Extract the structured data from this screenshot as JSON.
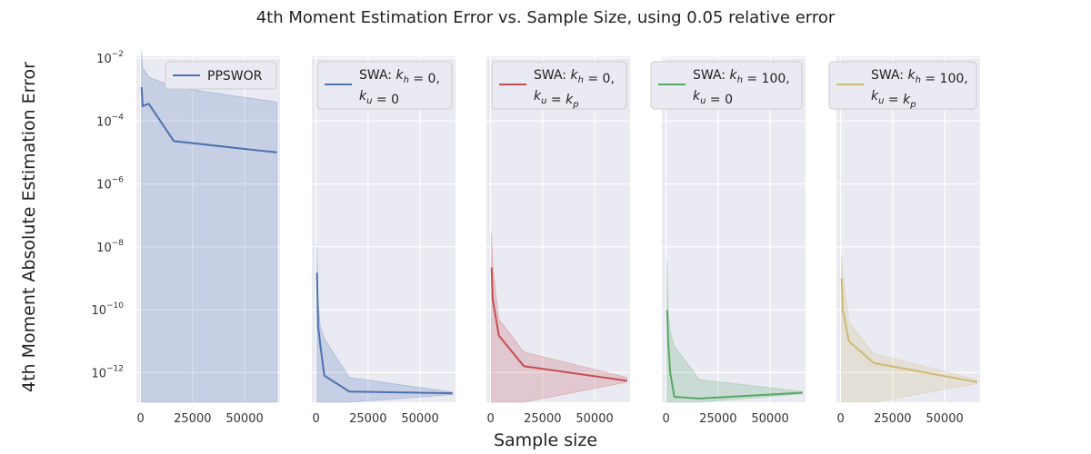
{
  "figure": {
    "title": "4th Moment Estimation Error vs. Sample Size, using 0.05 relative error",
    "xlabel": "Sample size",
    "ylabel": "4th Moment Absolute Estimation Error"
  },
  "chart_data": [
    {
      "type": "line",
      "legend": "PPSWOR",
      "color": "#4c72b0",
      "yscale": "log",
      "ylim": [
        1e-13,
        0.01
      ],
      "xlim": [
        -2000,
        67000
      ],
      "x_ticks": [
        "0",
        "25000",
        "50000"
      ],
      "y_ticks": [
        "10^-2",
        "10^-4",
        "10^-6",
        "10^-8",
        "10^-10",
        "10^-12"
      ],
      "x": [
        500,
        1000,
        4000,
        16000,
        65536
      ],
      "y": [
        0.0012,
        0.0003,
        0.00035,
        2.3e-05,
        1e-05
      ],
      "upper": [
        0.018,
        0.005,
        0.0025,
        0.0012,
        0.0004
      ],
      "lower": [
        1e-13,
        1e-13,
        1e-13,
        1e-13,
        1e-13
      ]
    },
    {
      "type": "line",
      "legend": {
        "l1": [
          "SWA: ",
          "k",
          "h",
          " = 0,"
        ],
        "l2": [
          "k",
          "u",
          " = 0"
        ]
      },
      "color": "#4c72b0",
      "yscale": "log",
      "ylim": [
        1e-13,
        0.01
      ],
      "xlim": [
        -2000,
        67000
      ],
      "x_ticks": [
        "0",
        "25000",
        "50000"
      ],
      "x": [
        500,
        1000,
        2000,
        4000,
        16000,
        65536
      ],
      "y": [
        1.5e-09,
        3e-11,
        8e-12,
        8e-13,
        2.5e-13,
        2.2e-13
      ],
      "upper": [
        1e-08,
        2e-10,
        3e-11,
        1.2e-11,
        7e-13,
        2.4e-13
      ],
      "lower": [
        1e-13,
        1e-13,
        1e-13,
        1e-13,
        1e-13,
        2e-13
      ]
    },
    {
      "type": "line",
      "legend": {
        "l1": [
          "SWA: ",
          "k",
          "h",
          " = 0,"
        ],
        "l2": [
          "k",
          "u",
          " = ",
          "k",
          "p"
        ]
      },
      "color": "#c44e52",
      "yscale": "log",
      "ylim": [
        1e-13,
        0.01
      ],
      "xlim": [
        -2000,
        67000
      ],
      "x_ticks": [
        "0",
        "25000",
        "50000"
      ],
      "x": [
        500,
        1000,
        4000,
        16000,
        65536
      ],
      "y": [
        2.2e-09,
        2.2e-10,
        1.5e-11,
        1.6e-12,
        5.5e-13
      ],
      "upper": [
        2.8e-08,
        2.5e-09,
        5e-11,
        4.5e-12,
        7e-13
      ],
      "lower": [
        1e-13,
        1e-13,
        1e-13,
        1e-13,
        5e-13
      ]
    },
    {
      "type": "line",
      "legend": {
        "l1": [
          "SWA: ",
          "k",
          "h",
          " = 100,"
        ],
        "l2": [
          "k",
          "u",
          " = 0"
        ]
      },
      "color": "#55a868",
      "yscale": "log",
      "ylim": [
        1e-13,
        0.01
      ],
      "xlim": [
        -2000,
        67000
      ],
      "x_ticks": [
        "0",
        "25000",
        "50000"
      ],
      "x": [
        500,
        1000,
        2000,
        4000,
        16000,
        65536
      ],
      "y": [
        1e-10,
        1e-11,
        1e-12,
        1.7e-13,
        1.5e-13,
        2.3e-13
      ],
      "upper": [
        3.5e-09,
        1e-10,
        2e-11,
        7e-12,
        6e-13,
        2.5e-13
      ],
      "lower": [
        1e-13,
        1e-13,
        1e-13,
        1e-13,
        1e-13,
        2.1e-13
      ]
    },
    {
      "type": "line",
      "legend": {
        "l1": [
          "SWA: ",
          "k",
          "h",
          " = 100,"
        ],
        "l2": [
          "k",
          "u",
          " = ",
          "k",
          "p"
        ]
      },
      "color": "#ccb974",
      "yscale": "log",
      "ylim": [
        1e-13,
        0.01
      ],
      "xlim": [
        -2000,
        67000
      ],
      "x_ticks": [
        "0",
        "25000",
        "50000"
      ],
      "x": [
        500,
        1000,
        4000,
        16000,
        65536
      ],
      "y": [
        1e-09,
        1e-10,
        1e-11,
        2e-12,
        5e-13
      ],
      "upper": [
        5e-09,
        1.5e-09,
        4e-11,
        4e-12,
        6e-13
      ],
      "lower": [
        1e-13,
        1e-13,
        1e-13,
        1e-13,
        4.5e-13
      ]
    }
  ]
}
